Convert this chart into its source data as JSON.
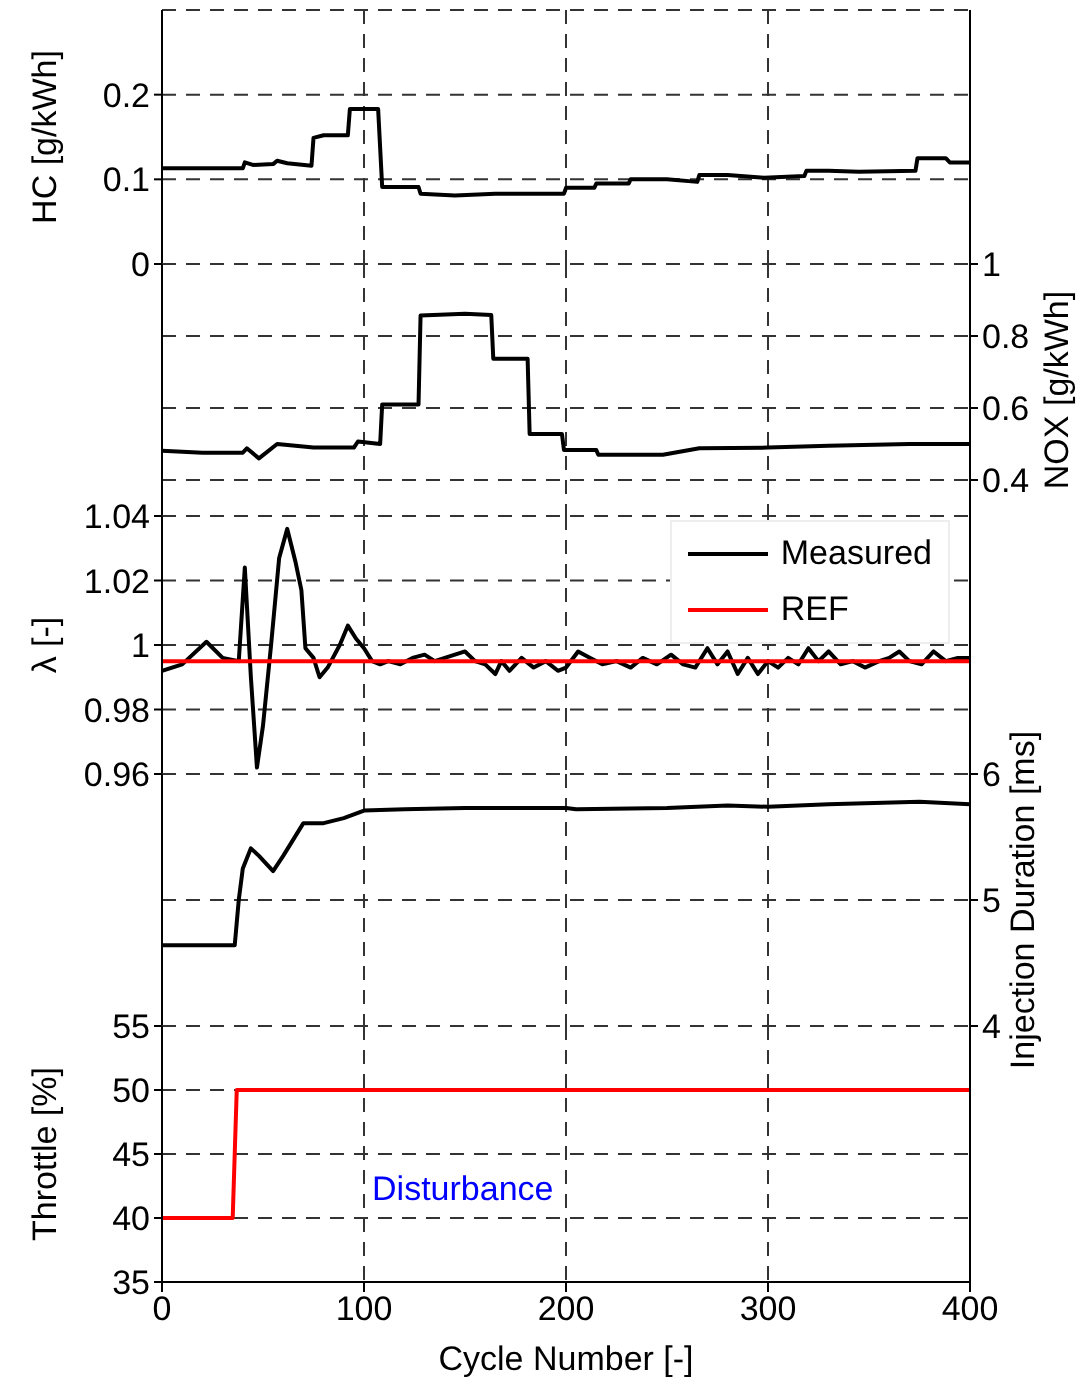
{
  "chart_data": [
    {
      "type": "line",
      "ylabel": "HC [g/kWh]",
      "xlim": [
        0,
        400
      ],
      "xticks": [
        0,
        100,
        200,
        300,
        400
      ],
      "ylim": [
        0,
        0.3
      ],
      "yticks": [
        0,
        0.1,
        0.2
      ],
      "grid": true,
      "tick_labels": "y",
      "series": [
        {
          "color": "#000000",
          "x": [
            0,
            40,
            41,
            45,
            55,
            57,
            62,
            74,
            75,
            80,
            92,
            93,
            107,
            109,
            127,
            128,
            145,
            165,
            199,
            200,
            214,
            215,
            231,
            232,
            250,
            265,
            266,
            280,
            298,
            318,
            319,
            330,
            345,
            373,
            374,
            388,
            390,
            400
          ],
          "values": [
            0.113,
            0.113,
            0.12,
            0.117,
            0.118,
            0.122,
            0.119,
            0.116,
            0.149,
            0.152,
            0.152,
            0.183,
            0.183,
            0.091,
            0.091,
            0.083,
            0.081,
            0.083,
            0.083,
            0.09,
            0.09,
            0.095,
            0.095,
            0.1,
            0.1,
            0.097,
            0.105,
            0.105,
            0.102,
            0.104,
            0.11,
            0.11,
            0.109,
            0.11,
            0.125,
            0.125,
            0.12,
            0.12
          ]
        }
      ]
    },
    {
      "type": "line",
      "y2label": "NOX [g/kWh]",
      "xlim": [
        0,
        400
      ],
      "xticks": [
        0,
        100,
        200,
        300,
        400
      ],
      "y2lim": [
        0.3,
        1
      ],
      "y2ticks": [
        0.4,
        0.6,
        0.8,
        1
      ],
      "grid": true,
      "tick_labels": "y",
      "series": [
        {
          "color": "#000000",
          "axis": "y2",
          "x": [
            0,
            20,
            40,
            42,
            48,
            57,
            75,
            95,
            97,
            108,
            109,
            127,
            128,
            150,
            163,
            164,
            181,
            182,
            198,
            199,
            215,
            216,
            248,
            266,
            300,
            330,
            370,
            400
          ],
          "values": [
            0.481,
            0.476,
            0.476,
            0.488,
            0.46,
            0.5,
            0.49,
            0.49,
            0.507,
            0.5,
            0.61,
            0.61,
            0.857,
            0.862,
            0.858,
            0.737,
            0.737,
            0.528,
            0.528,
            0.483,
            0.483,
            0.47,
            0.47,
            0.488,
            0.49,
            0.495,
            0.5,
            0.5
          ]
        }
      ]
    },
    {
      "type": "line",
      "ylabel": "λ [-]",
      "xlim": [
        0,
        400
      ],
      "xticks": [
        0,
        100,
        200,
        300,
        400
      ],
      "ylim": [
        0.96,
        1.04
      ],
      "yticks": [
        0.96,
        0.98,
        1,
        1.02,
        1.04
      ],
      "grid": true,
      "tick_labels": "y",
      "legend": "top right",
      "series": [
        {
          "name": "Measured",
          "color": "#000000",
          "x": [
            0,
            10,
            22,
            30,
            38,
            41,
            44,
            47,
            50,
            54,
            58,
            62,
            66,
            69,
            71,
            75,
            78,
            82,
            88,
            92,
            96,
            100,
            104,
            108,
            112,
            118,
            124,
            130,
            135,
            140,
            150,
            155,
            160,
            165,
            168,
            172,
            178,
            184,
            190,
            196,
            200,
            206,
            212,
            218,
            225,
            232,
            238,
            245,
            252,
            258,
            264,
            270,
            275,
            280,
            285,
            290,
            295,
            300,
            305,
            310,
            315,
            320,
            325,
            330,
            336,
            342,
            348,
            355,
            360,
            365,
            370,
            376,
            382,
            388,
            394,
            400
          ],
          "values": [
            0.992,
            0.994,
            1.001,
            0.996,
            0.995,
            1.024,
            0.99,
            0.962,
            0.975,
            1.0,
            1.027,
            1.036,
            1.026,
            1.017,
            0.999,
            0.996,
            0.99,
            0.993,
            1.0,
            1.006,
            1.002,
            0.999,
            0.995,
            0.994,
            0.995,
            0.994,
            0.996,
            0.997,
            0.995,
            0.996,
            0.998,
            0.995,
            0.994,
            0.991,
            0.995,
            0.992,
            0.996,
            0.993,
            0.995,
            0.992,
            0.993,
            0.998,
            0.996,
            0.994,
            0.995,
            0.993,
            0.996,
            0.994,
            0.997,
            0.994,
            0.993,
            0.999,
            0.994,
            0.998,
            0.991,
            0.996,
            0.991,
            0.995,
            0.993,
            0.996,
            0.994,
            0.999,
            0.995,
            0.998,
            0.994,
            0.995,
            0.993,
            0.995,
            0.996,
            0.998,
            0.995,
            0.994,
            0.998,
            0.995,
            0.996,
            0.996
          ]
        },
        {
          "name": "REF",
          "color": "#ff0000",
          "x": [
            0,
            400
          ],
          "values": [
            0.995,
            0.995
          ]
        }
      ]
    },
    {
      "type": "line",
      "y2label": "Injection Duration [ms]",
      "xlim": [
        0,
        400
      ],
      "xticks": [
        0,
        100,
        200,
        300,
        400
      ],
      "y2lim": [
        4,
        6
      ],
      "y2ticks": [
        4,
        5,
        6
      ],
      "grid": true,
      "tick_labels": "y",
      "series": [
        {
          "color": "#000000",
          "axis": "y2",
          "x": [
            0,
            36,
            38,
            40,
            44,
            48,
            55,
            60,
            70,
            80,
            90,
            100,
            120,
            150,
            200,
            205,
            250,
            280,
            300,
            330,
            375,
            400
          ],
          "values": [
            4.64,
            4.64,
            5.0,
            5.25,
            5.41,
            5.35,
            5.23,
            5.35,
            5.61,
            5.61,
            5.65,
            5.71,
            5.72,
            5.73,
            5.73,
            5.72,
            5.73,
            5.75,
            5.74,
            5.76,
            5.78,
            5.76
          ]
        }
      ]
    },
    {
      "type": "line",
      "ylabel": "Throttle [%]",
      "xlabel": "Cycle Number [-]",
      "xlim": [
        0,
        400
      ],
      "xticks": [
        0,
        100,
        200,
        300,
        400
      ],
      "ylim": [
        35,
        55
      ],
      "yticks": [
        35,
        40,
        45,
        50,
        55
      ],
      "grid": true,
      "annotations": [
        "Disturbance"
      ],
      "series": [
        {
          "color": "#ff0000",
          "x": [
            0,
            35,
            37,
            400
          ],
          "values": [
            40,
            40,
            50,
            50
          ]
        }
      ]
    }
  ]
}
